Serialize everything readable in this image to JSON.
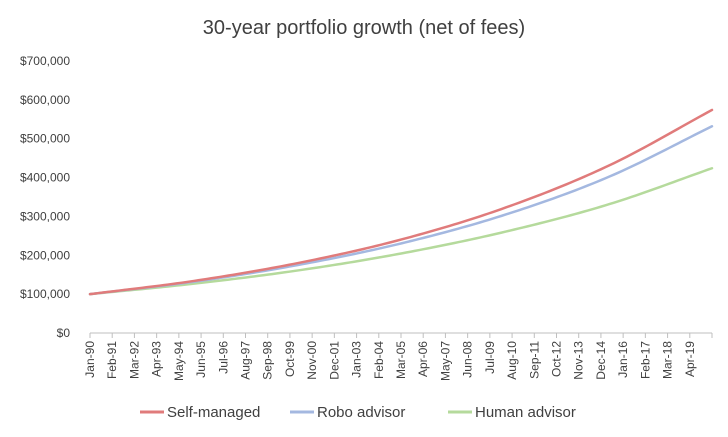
{
  "chart_data": {
    "type": "line",
    "title": "30-year portfolio growth (net of fees)",
    "xlabel": "",
    "ylabel": "",
    "x_tick_labels": [
      "Jan-90",
      "Feb-91",
      "Mar-92",
      "Apr-93",
      "May-94",
      "Jun-95",
      "Jul-96",
      "Aug-97",
      "Sep-98",
      "Oct-99",
      "Nov-00",
      "Dec-01",
      "Jan-03",
      "Feb-04",
      "Mar-05",
      "Apr-06",
      "May-07",
      "Jun-08",
      "Jul-09",
      "Aug-10",
      "Sep-11",
      "Oct-12",
      "Nov-13",
      "Dec-14",
      "Jan-16",
      "Feb-17",
      "Mar-18",
      "Apr-19"
    ],
    "x_range": [
      "Jan-90",
      "Dec-19"
    ],
    "y_tick_labels": [
      "$0",
      "$100,000",
      "$200,000",
      "$300,000",
      "$400,000",
      "$500,000",
      "$600,000",
      "$700,000"
    ],
    "ylim": [
      0,
      700000
    ],
    "grid": "none",
    "legend_position": "bottom",
    "series": [
      {
        "name": "Self-managed",
        "color": "#e07b7b",
        "x": [
          "Jan-90",
          "Jan-95",
          "Jan-00",
          "Jan-05",
          "Jan-10",
          "Jan-15",
          "Dec-19"
        ],
        "values": [
          100000,
          134000,
          180000,
          241000,
          323000,
          432000,
          574000
        ]
      },
      {
        "name": "Robo advisor",
        "color": "#a4b8e0",
        "x": [
          "Jan-90",
          "Jan-95",
          "Jan-00",
          "Jan-05",
          "Jan-10",
          "Jan-15",
          "Dec-19"
        ],
        "values": [
          100000,
          132000,
          175000,
          231000,
          305000,
          403000,
          532000
        ]
      },
      {
        "name": "Human advisor",
        "color": "#b5da9c",
        "x": [
          "Jan-90",
          "Jan-95",
          "Jan-00",
          "Jan-05",
          "Jan-10",
          "Jan-15",
          "Dec-19"
        ],
        "values": [
          100000,
          127000,
          161000,
          205000,
          261000,
          332000,
          424000
        ]
      }
    ]
  }
}
